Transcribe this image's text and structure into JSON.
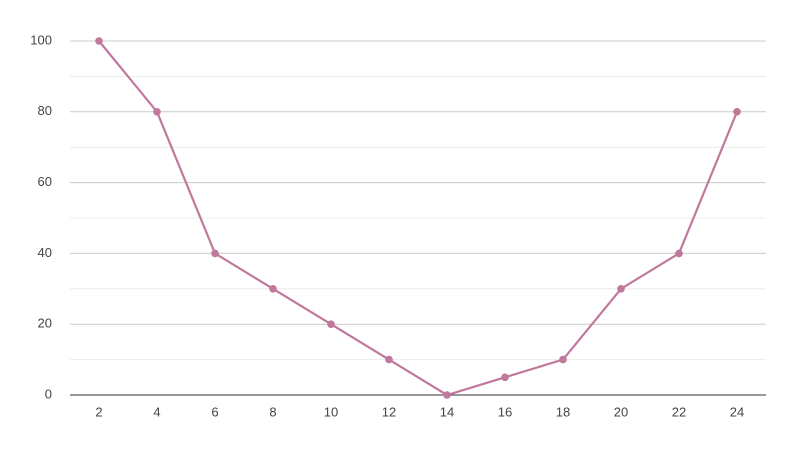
{
  "chart_data": {
    "type": "line",
    "x": [
      2,
      4,
      6,
      8,
      10,
      12,
      14,
      16,
      18,
      20,
      22,
      24
    ],
    "series": [
      {
        "color": "#c0789d",
        "values": [
          100,
          80,
          40,
          30,
          20,
          10,
          0,
          5,
          10,
          30,
          40,
          80
        ]
      }
    ],
    "xlim": [
      1,
      25
    ],
    "xticks": [
      2,
      4,
      6,
      8,
      10,
      12,
      14,
      16,
      18,
      20,
      22,
      24
    ],
    "ylim": [
      0,
      100
    ],
    "yticks": [
      0,
      20,
      40,
      60,
      80,
      100
    ],
    "minor_yticks": [
      10,
      30,
      50,
      70,
      90
    ],
    "grid": true
  }
}
